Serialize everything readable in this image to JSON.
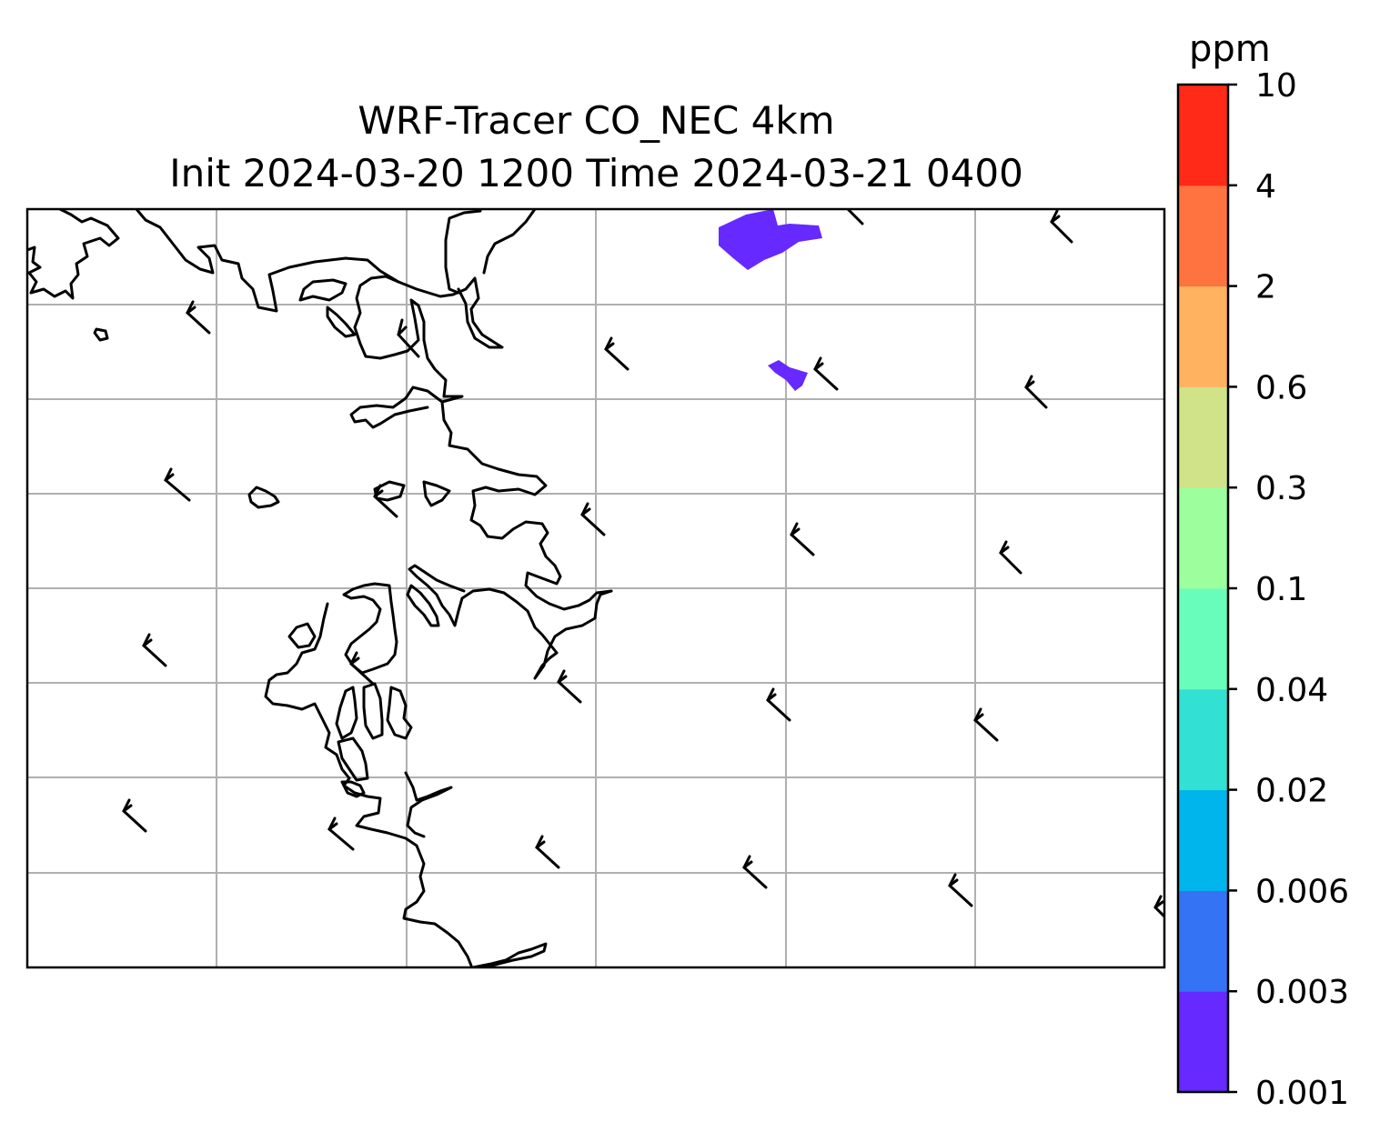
{
  "title": {
    "line1": "WRF-Tracer CO_NEC 4km",
    "line2": "Init 2024-03-20 1200 Time 2024-03-21 0400"
  },
  "colorbar": {
    "unit": "ppm",
    "levels": [
      "0.001",
      "0.003",
      "0.006",
      "0.02",
      "0.04",
      "0.1",
      "0.3",
      "0.6",
      "2",
      "4",
      "10"
    ],
    "colors": [
      "#6629ff",
      "#3573f5",
      "#00b5eb",
      "#33e0d4",
      "#69fdbb",
      "#9cfe9d",
      "#d0e388",
      "#ffb360",
      "#ff7340",
      "#ff2a17"
    ]
  },
  "map": {
    "gridlines": true,
    "grid_color": "#b0b0b0",
    "coastline_color": "#000000",
    "tracer_plume_color": "#6629ff",
    "wind_barbs": "black"
  }
}
